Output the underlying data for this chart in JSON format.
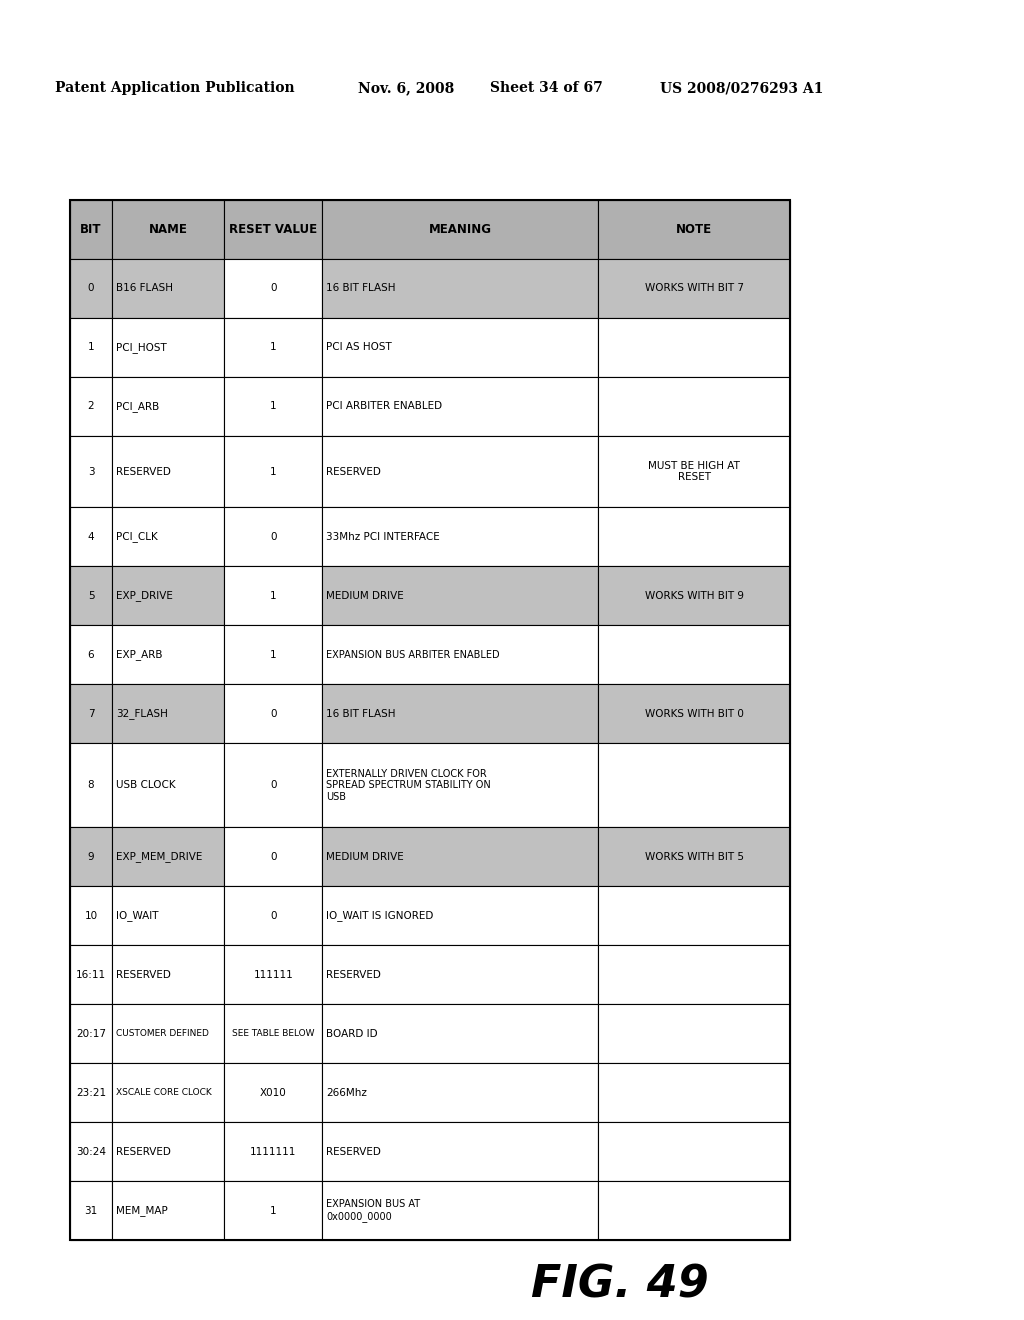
{
  "header_left": "Patent Application Publication",
  "header_mid1": "Nov. 6, 2008",
  "header_mid2": "Sheet 34 of 67",
  "header_right": "US 2008/0276293 A1",
  "figure_label": "FIG. 49",
  "columns": [
    "BIT",
    "NAME",
    "RESET VALUE",
    "MEANING",
    "NOTE"
  ],
  "rows": [
    {
      "bit": "0",
      "name": "B16 FLASH",
      "reset": "0",
      "meaning": "16 BIT FLASH",
      "note": "WORKS WITH BIT 7",
      "shaded": true
    },
    {
      "bit": "1",
      "name": "PCI_HOST",
      "reset": "1",
      "meaning": "PCI AS HOST",
      "note": "",
      "shaded": false
    },
    {
      "bit": "2",
      "name": "PCI_ARB",
      "reset": "1",
      "meaning": "PCI ARBITER ENABLED",
      "note": "",
      "shaded": false
    },
    {
      "bit": "3",
      "name": "RESERVED",
      "reset": "1",
      "meaning": "RESERVED",
      "note": "MUST BE HIGH AT\nRESET",
      "shaded": false
    },
    {
      "bit": "4",
      "name": "PCI_CLK",
      "reset": "0",
      "meaning": "33Mhz PCI INTERFACE",
      "note": "",
      "shaded": false
    },
    {
      "bit": "5",
      "name": "EXP_DRIVE",
      "reset": "1",
      "meaning": "MEDIUM DRIVE",
      "note": "WORKS WITH BIT 9",
      "shaded": true
    },
    {
      "bit": "6",
      "name": "EXP_ARB",
      "reset": "1",
      "meaning": "EXPANSION BUS ARBITER ENABLED",
      "note": "",
      "shaded": false
    },
    {
      "bit": "7",
      "name": "32_FLASH",
      "reset": "0",
      "meaning": "16 BIT FLASH",
      "note": "WORKS WITH BIT 0",
      "shaded": true
    },
    {
      "bit": "8",
      "name": "USB CLOCK",
      "reset": "0",
      "meaning": "EXTERNALLY DRIVEN CLOCK FOR\nSPREAD SPECTRUM STABILITY ON\nUSB",
      "note": "",
      "shaded": false
    },
    {
      "bit": "9",
      "name": "EXP_MEM_DRIVE",
      "reset": "0",
      "meaning": "MEDIUM DRIVE",
      "note": "WORKS WITH BIT 5",
      "shaded": true
    },
    {
      "bit": "10",
      "name": "IO_WAIT",
      "reset": "0",
      "meaning": "IO_WAIT IS IGNORED",
      "note": "",
      "shaded": false
    },
    {
      "bit": "16:11",
      "name": "RESERVED",
      "reset": "111111",
      "meaning": "RESERVED",
      "note": "",
      "shaded": false
    },
    {
      "bit": "20:17",
      "name": "CUSTOMER DEFINED",
      "reset": "SEE TABLE BELOW",
      "meaning": "BOARD ID",
      "note": "",
      "shaded": false
    },
    {
      "bit": "23:21",
      "name": "XSCALE CORE CLOCK",
      "reset": "X010",
      "meaning": "266Mhz",
      "note": "",
      "shaded": false
    },
    {
      "bit": "30:24",
      "name": "RESERVED",
      "reset": "1111111",
      "meaning": "RESERVED",
      "note": "",
      "shaded": false
    },
    {
      "bit": "31",
      "name": "MEM_MAP",
      "reset": "1",
      "meaning": "EXPANSION BUS AT\n0x0000_0000",
      "note": "",
      "shaded": false
    }
  ],
  "shade_color": "#c0c0c0",
  "header_shade": "#b0b0b0",
  "white": "#ffffff",
  "border_color": "#000000",
  "bg_color": "#ffffff"
}
